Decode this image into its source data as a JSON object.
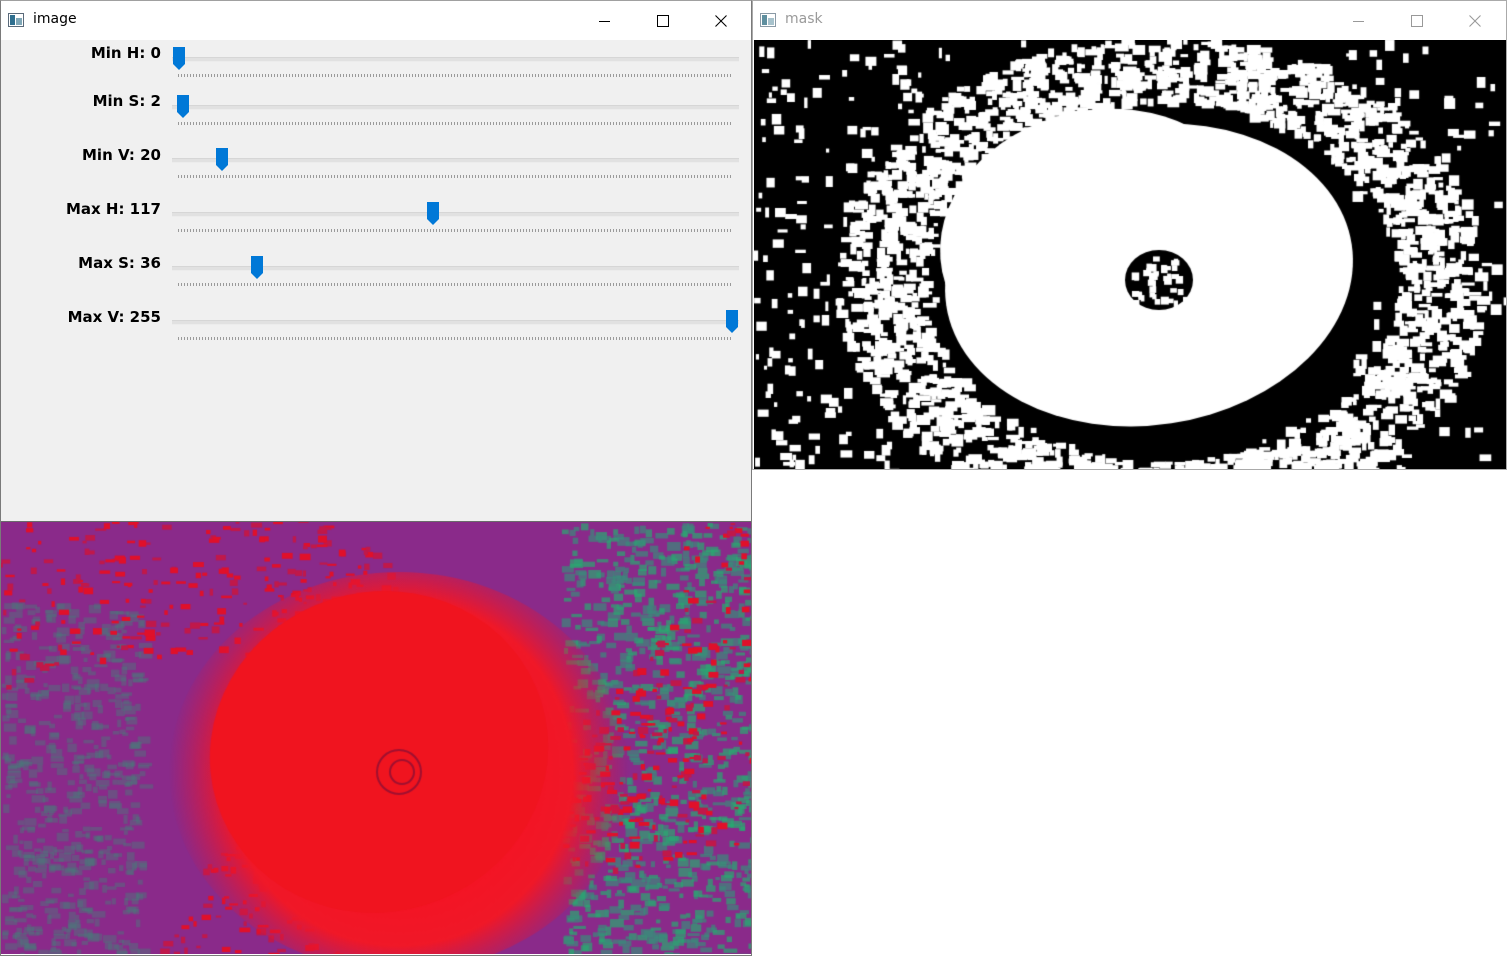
{
  "windows": {
    "image": {
      "title": "image",
      "trackbars": [
        {
          "label": "Min H: 0",
          "value": 0,
          "max": 179
        },
        {
          "label": "Min S: 2",
          "value": 2,
          "max": 255
        },
        {
          "label": "Min V: 20",
          "value": 20,
          "max": 255
        },
        {
          "label": "Max H: 117",
          "value": 117,
          "max": 255
        },
        {
          "label": "Max S: 36",
          "value": 36,
          "max": 255
        },
        {
          "label": "Max V: 255",
          "value": 255,
          "max": 255
        }
      ]
    },
    "mask": {
      "title": "mask"
    }
  },
  "colors": {
    "thumb": "#0078d7",
    "panel": "#f0f0f0",
    "storm_core": "#ff0a1a",
    "storm_band": "#8a2a8a",
    "cloud_green": "#2aa870",
    "mask_fg": "#ffffff",
    "mask_bg": "#000000"
  },
  "icons": {
    "app": "opencv-window-icon",
    "minimize": "minimize-icon",
    "maximize": "maximize-icon",
    "close": "close-icon"
  }
}
